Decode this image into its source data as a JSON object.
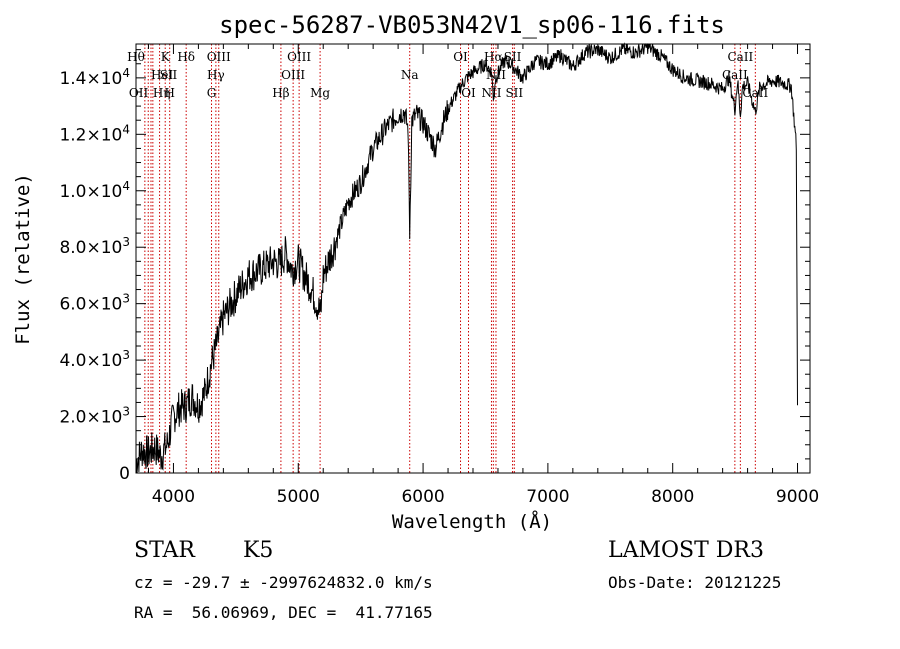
{
  "chart_data": {
    "type": "line",
    "title": "spec-56287-VB053N42V1_sp06-116.fits",
    "xlabel": "Wavelength (Å)",
    "ylabel": "Flux (relative)",
    "xlim": [
      3700,
      9100
    ],
    "ylim": [
      0,
      15200
    ],
    "x_ticks": [
      {
        "value": 4000,
        "label": "4000"
      },
      {
        "value": 5000,
        "label": "5000"
      },
      {
        "value": 6000,
        "label": "6000"
      },
      {
        "value": 7000,
        "label": "7000"
      },
      {
        "value": 8000,
        "label": "8000"
      },
      {
        "value": 9000,
        "label": "9000"
      }
    ],
    "y_ticks": [
      {
        "value": 0,
        "mant": "0",
        "exp": ""
      },
      {
        "value": 2000,
        "mant": "2.0×10",
        "exp": "3"
      },
      {
        "value": 4000,
        "mant": "4.0×10",
        "exp": "3"
      },
      {
        "value": 6000,
        "mant": "6.0×10",
        "exp": "3"
      },
      {
        "value": 8000,
        "mant": "8.0×10",
        "exp": "3"
      },
      {
        "value": 10000,
        "mant": "1.0×10",
        "exp": "4"
      },
      {
        "value": 12000,
        "mant": "1.2×10",
        "exp": "4"
      },
      {
        "value": 14000,
        "mant": "1.4×10",
        "exp": "4"
      }
    ],
    "grid": false,
    "line_color": "#000000",
    "marker_color": "#cc0000",
    "spectrum": {
      "x": [
        3700,
        3750,
        3800,
        3850,
        3900,
        3950,
        4000,
        4050,
        4100,
        4150,
        4200,
        4250,
        4300,
        4350,
        4400,
        4500,
        4600,
        4700,
        4800,
        4850,
        4900,
        4950,
        5000,
        5050,
        5100,
        5150,
        5180,
        5200,
        5300,
        5400,
        5500,
        5600,
        5700,
        5800,
        5850,
        5880,
        5893,
        5910,
        5950,
        6000,
        6100,
        6150,
        6200,
        6250,
        6300,
        6350,
        6400,
        6500,
        6550,
        6563,
        6580,
        6650,
        6700,
        6800,
        6900,
        7000,
        7100,
        7200,
        7300,
        7400,
        7500,
        7600,
        7700,
        7800,
        7900,
        8000,
        8100,
        8200,
        8300,
        8400,
        8450,
        8498,
        8520,
        8542,
        8560,
        8600,
        8662,
        8700,
        8800,
        8900,
        8950,
        8990,
        9000
      ],
      "y": [
        400,
        800,
        700,
        900,
        600,
        1000,
        2000,
        2300,
        2400,
        2700,
        2400,
        2800,
        3800,
        4600,
        5500,
        6300,
        7000,
        7200,
        7500,
        7400,
        7800,
        7200,
        7500,
        7000,
        6600,
        6000,
        5600,
        7000,
        8200,
        9600,
        10300,
        11500,
        12200,
        12700,
        12800,
        12200,
        8500,
        12500,
        12700,
        12400,
        11500,
        12300,
        12900,
        13300,
        13700,
        14000,
        14200,
        14500,
        14200,
        13200,
        14000,
        14600,
        14500,
        14000,
        14600,
        14500,
        14800,
        14400,
        14900,
        15000,
        14700,
        15000,
        14900,
        15100,
        14800,
        14300,
        14000,
        13900,
        13800,
        13600,
        14000,
        12900,
        13900,
        12700,
        13700,
        13800,
        12800,
        13700,
        13900,
        13800,
        13700,
        11600,
        2400
      ]
    },
    "lines": [
      {
        "x": 3771,
        "label": "Hθ",
        "row": 0,
        "pos": "end"
      },
      {
        "x": 3798,
        "label": "OII",
        "row": 2,
        "pos": "end"
      },
      {
        "x": 3820,
        "label": "HeI",
        "row": 1,
        "pos": "start"
      },
      {
        "x": 3835,
        "label": "Hη",
        "row": 2,
        "pos": "start"
      },
      {
        "x": 3889,
        "label": "SII",
        "row": 1,
        "pos": "start"
      },
      {
        "x": 3934,
        "label": "K",
        "row": 0,
        "pos": "middle"
      },
      {
        "x": 3970,
        "label": "H",
        "row": 2,
        "pos": "middle"
      },
      {
        "x": 4102,
        "label": "Hδ",
        "row": 0,
        "pos": "middle"
      },
      {
        "x": 4305,
        "label": "G",
        "row": 2,
        "pos": "middle"
      },
      {
        "x": 4340,
        "label": "Hγ",
        "row": 1,
        "pos": "middle"
      },
      {
        "x": 4363,
        "label": "OIII",
        "row": 0,
        "pos": "middle"
      },
      {
        "x": 4861,
        "label": "Hβ",
        "row": 2,
        "pos": "middle"
      },
      {
        "x": 4959,
        "label": "OIII",
        "row": 1,
        "pos": "middle"
      },
      {
        "x": 5007,
        "label": "OIII",
        "row": 0,
        "pos": "middle"
      },
      {
        "x": 5175,
        "label": "Mg",
        "row": 2,
        "pos": "middle"
      },
      {
        "x": 5893,
        "label": "Na",
        "row": 1,
        "pos": "middle"
      },
      {
        "x": 6300,
        "label": "OI",
        "row": 0,
        "pos": "middle"
      },
      {
        "x": 6364,
        "label": "OI",
        "row": 2,
        "pos": "middle"
      },
      {
        "x": 6548,
        "label": "NII",
        "row": 2,
        "pos": "middle"
      },
      {
        "x": 6563,
        "label": "Hα",
        "row": 0,
        "pos": "middle"
      },
      {
        "x": 6584,
        "label": "NII",
        "row": 1,
        "pos": "middle"
      },
      {
        "x": 6717,
        "label": "SII",
        "row": 0,
        "pos": "middle"
      },
      {
        "x": 6731,
        "label": "SII",
        "row": 2,
        "pos": "middle"
      },
      {
        "x": 8498,
        "label": "CaII",
        "row": 1,
        "pos": "middle"
      },
      {
        "x": 8542,
        "label": "CaII",
        "row": 0,
        "pos": "middle"
      },
      {
        "x": 8662,
        "label": "CaII",
        "row": 2,
        "pos": "middle"
      }
    ]
  },
  "info": {
    "class_label": "STAR",
    "subclass": "K5",
    "survey": "LAMOST DR3",
    "cz_line": "cz = -29.7 ± -2997624832.0 km/s",
    "obs_date": "Obs-Date: 20121225",
    "radec_line": "RA =  56.06969, DEC =  41.77165"
  }
}
